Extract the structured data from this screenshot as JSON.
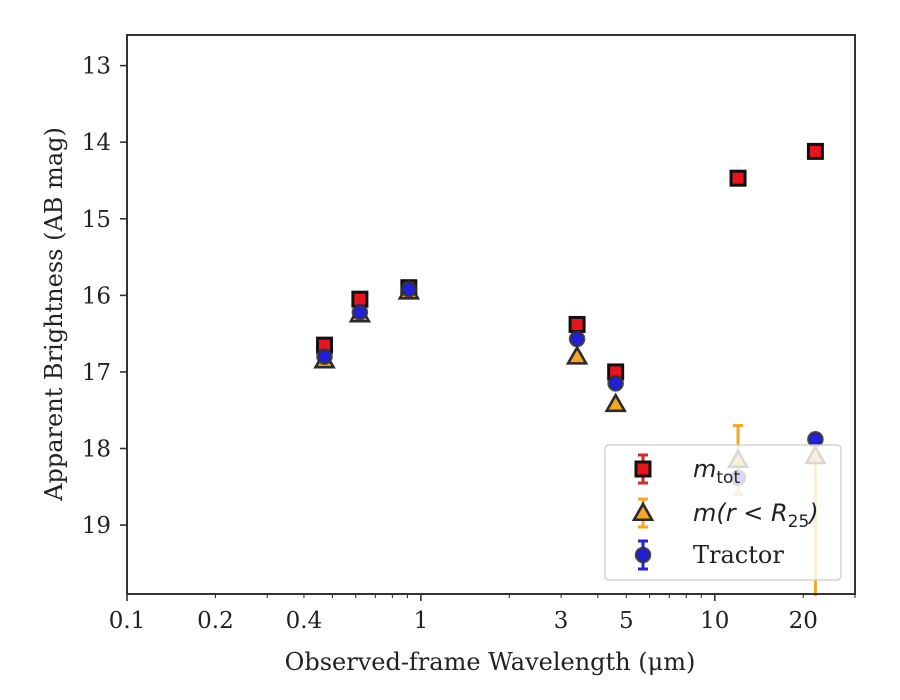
{
  "chart_data": {
    "type": "scatter",
    "xlabel": "Observed-frame Wavelength (μm)",
    "ylabel": "Apparent Brightness (AB mag)",
    "xscale": "log",
    "xlim": [
      0.1,
      30
    ],
    "ylim": [
      19.9,
      12.6
    ],
    "y_inverted": true,
    "x_ticks": [
      0.1,
      0.2,
      0.4,
      1,
      3,
      5,
      10,
      20
    ],
    "x_tick_labels": [
      "0.1",
      "0.2",
      "0.4",
      "1",
      "3",
      "5",
      "10",
      "20"
    ],
    "y_ticks": [
      13,
      14,
      15,
      16,
      17,
      18,
      19
    ],
    "y_tick_labels": [
      "13",
      "14",
      "15",
      "16",
      "17",
      "18",
      "19"
    ],
    "grid": false,
    "legend_position": "lower-right",
    "series": [
      {
        "name": "m_tot",
        "label_main": "m",
        "label_sub": "tot",
        "marker": "square",
        "face_color": "#e8141e",
        "edge_color": "#111111",
        "error_color": "#d62728",
        "points": [
          {
            "x": 0.47,
            "y": 16.65,
            "err": 0.03
          },
          {
            "x": 0.62,
            "y": 16.05,
            "err": 0.03
          },
          {
            "x": 0.91,
            "y": 15.9,
            "err": 0.03
          },
          {
            "x": 3.4,
            "y": 16.38,
            "err": 0.03
          },
          {
            "x": 4.6,
            "y": 17.0,
            "err": 0.03
          },
          {
            "x": 12.0,
            "y": 14.47,
            "err": 0.03
          },
          {
            "x": 22.0,
            "y": 14.12,
            "err": 0.03
          }
        ]
      },
      {
        "name": "m(r<R25)",
        "label_main": "m(r < R",
        "label_sub": "25",
        "label_end": ")",
        "marker": "triangle",
        "face_color": "#f5a623",
        "edge_color": "#2b2b2b",
        "error_color": "#f5a623",
        "points": [
          {
            "x": 0.47,
            "y": 16.85,
            "err": 0.03
          },
          {
            "x": 0.62,
            "y": 16.25,
            "err": 0.03
          },
          {
            "x": 0.91,
            "y": 15.95,
            "err": 0.03
          },
          {
            "x": 3.4,
            "y": 16.8,
            "err": 0.03
          },
          {
            "x": 4.6,
            "y": 17.42,
            "err": 0.03
          },
          {
            "x": 12.0,
            "y": 18.15,
            "err": 0.45
          },
          {
            "x": 22.0,
            "y": 18.1,
            "err_low": 0.15,
            "err_high": 2.3
          }
        ]
      },
      {
        "name": "Tractor",
        "label_main": "Tractor",
        "marker": "circle",
        "face_color": "#1f1fdc",
        "edge_color": "#333333",
        "error_color": "#2222e0",
        "points": [
          {
            "x": 0.47,
            "y": 16.8,
            "err": 0.03
          },
          {
            "x": 0.62,
            "y": 16.22,
            "err": 0.03
          },
          {
            "x": 0.91,
            "y": 15.92,
            "err": 0.03
          },
          {
            "x": 3.4,
            "y": 16.57,
            "err": 0.03
          },
          {
            "x": 4.6,
            "y": 17.15,
            "err": 0.04
          },
          {
            "x": 12.0,
            "y": 18.38,
            "err": 0.06
          },
          {
            "x": 22.0,
            "y": 17.88,
            "err": 0.06
          }
        ]
      }
    ]
  }
}
